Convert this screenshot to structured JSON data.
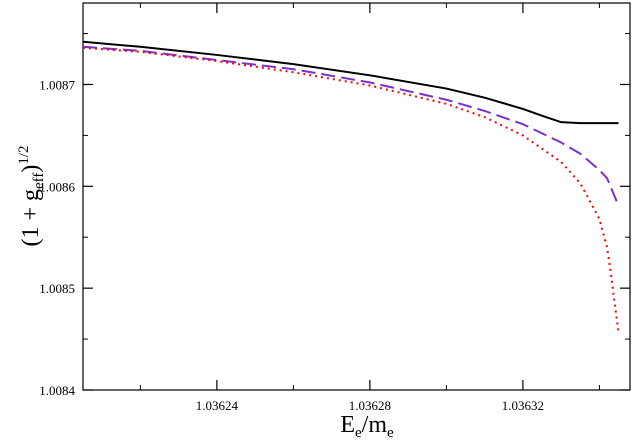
{
  "chart_data": {
    "type": "line",
    "xlabel": {
      "main": "E",
      "sub1": "e",
      "slash": "/m",
      "sub2": "e"
    },
    "ylabel": {
      "open": "(1 + g",
      "sub": "eff",
      "close": ")",
      "sup": "1/2"
    },
    "xlim": [
      1.036205,
      1.036348
    ],
    "ylim": [
      1.0084,
      1.00878
    ],
    "x_ticks": [
      1.03624,
      1.03628,
      1.03632
    ],
    "x_tick_labels": [
      "1.03624",
      "1.03628",
      "1.03632"
    ],
    "y_ticks": [
      1.0084,
      1.0085,
      1.0086,
      1.0087
    ],
    "y_tick_labels": [
      "1.0084",
      "1.0085",
      "1.0086",
      "1.0087"
    ],
    "grid": false,
    "series": [
      {
        "style": "solid",
        "color": "#000000",
        "points": [
          [
            1.036205,
            1.008742
          ],
          [
            1.03622,
            1.008737
          ],
          [
            1.03624,
            1.008729
          ],
          [
            1.03626,
            1.00872
          ],
          [
            1.03628,
            1.008709
          ],
          [
            1.0363,
            1.008696
          ],
          [
            1.03631,
            1.008687
          ],
          [
            1.03632,
            1.008676
          ],
          [
            1.036326,
            1.008668
          ],
          [
            1.03633,
            1.008663
          ],
          [
            1.036335,
            1.008662
          ],
          [
            1.036345,
            1.008662
          ]
        ]
      },
      {
        "style": "dashed",
        "color": "#7b2fd1",
        "points": [
          [
            1.036205,
            1.008737
          ],
          [
            1.03622,
            1.008733
          ],
          [
            1.03624,
            1.008724
          ],
          [
            1.03626,
            1.008715
          ],
          [
            1.03628,
            1.008702
          ],
          [
            1.0363,
            1.008685
          ],
          [
            1.03631,
            1.008674
          ],
          [
            1.03632,
            1.008661
          ],
          [
            1.03633,
            1.008643
          ],
          [
            1.036335,
            1.008632
          ],
          [
            1.03634,
            1.008616
          ],
          [
            1.036342,
            1.008608
          ],
          [
            1.036345,
            1.008581
          ]
        ]
      },
      {
        "style": "dotted",
        "color": "#ff0000",
        "points": [
          [
            1.036205,
            1.008736
          ],
          [
            1.03622,
            1.008732
          ],
          [
            1.03624,
            1.008723
          ],
          [
            1.03626,
            1.008712
          ],
          [
            1.03628,
            1.008699
          ],
          [
            1.0363,
            1.008681
          ],
          [
            1.03631,
            1.008668
          ],
          [
            1.03632,
            1.00865
          ],
          [
            1.03633,
            1.008624
          ],
          [
            1.036335,
            1.008603
          ],
          [
            1.03634,
            1.008568
          ],
          [
            1.036342,
            1.00854
          ],
          [
            1.036343,
            1.008515
          ],
          [
            1.036344,
            1.008485
          ],
          [
            1.036345,
            1.008457
          ]
        ]
      }
    ]
  }
}
